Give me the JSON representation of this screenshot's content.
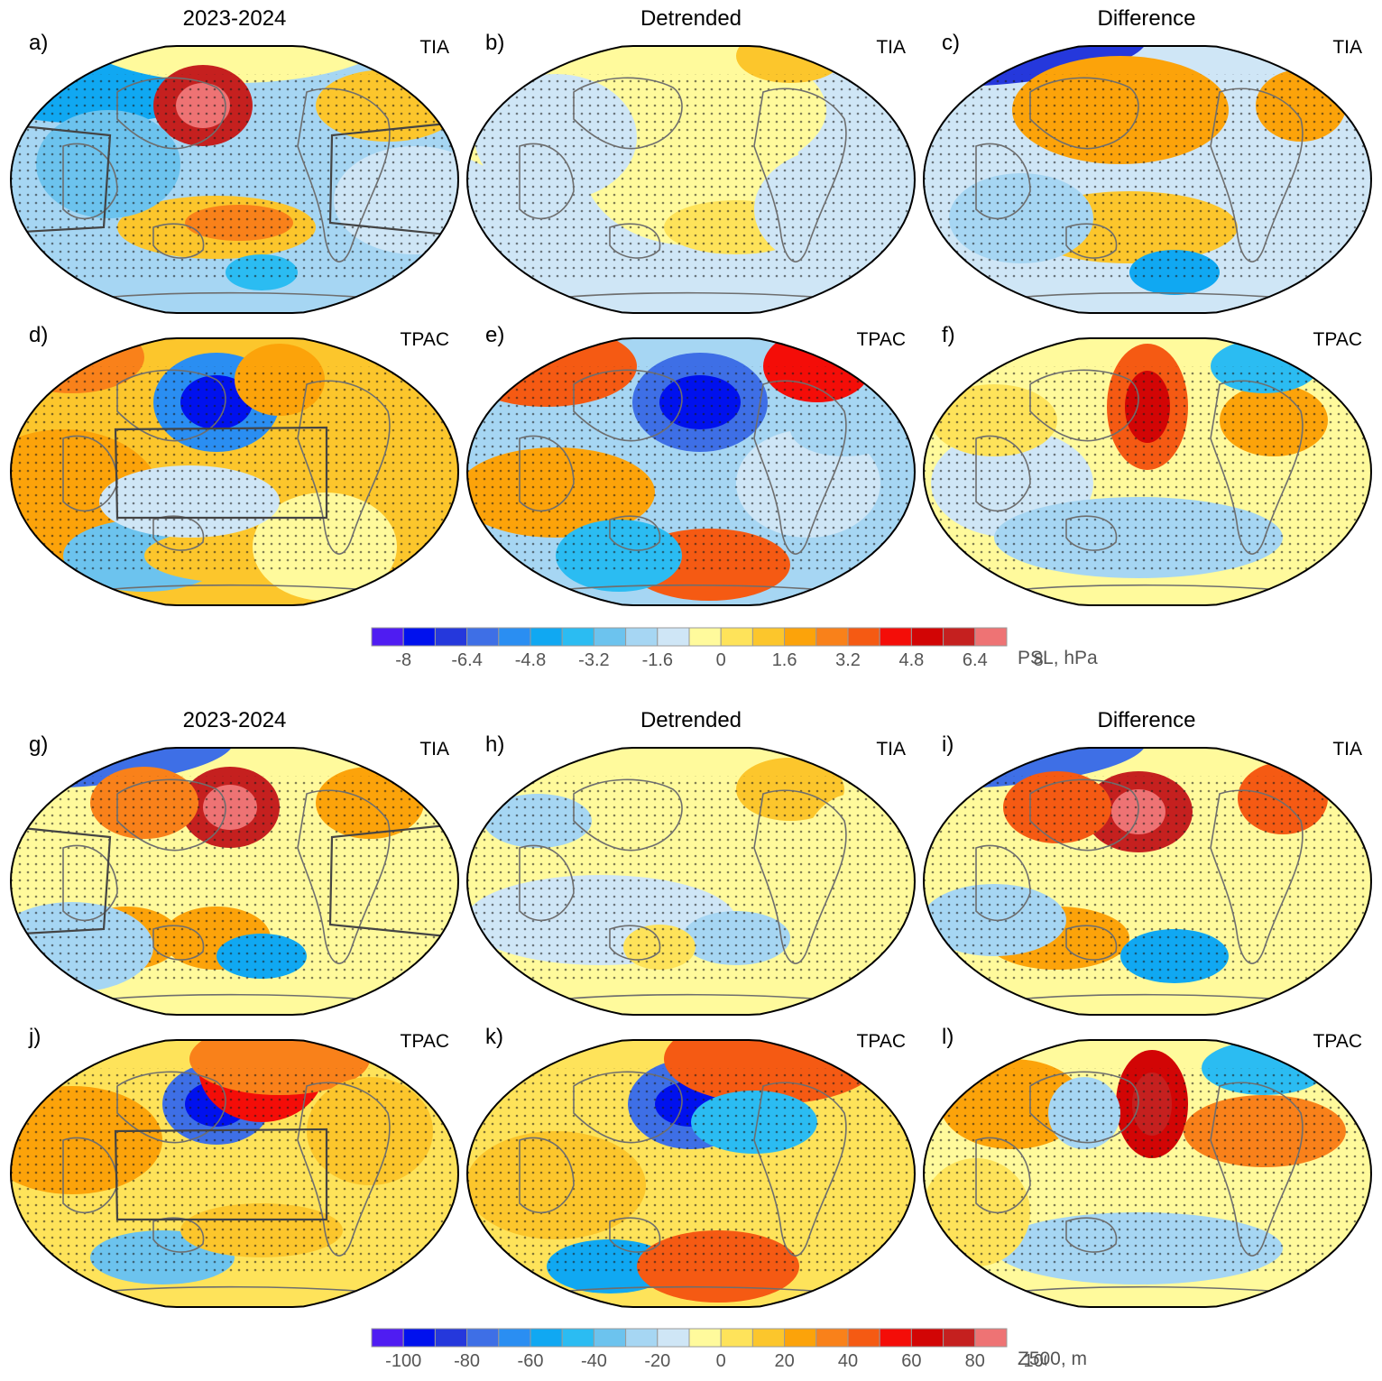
{
  "column_titles": [
    "2023-2024",
    "Detrended",
    "Difference"
  ],
  "colors": [
    "#4f1cf2",
    "#0011ee",
    "#2538dc",
    "#3e6fe6",
    "#2a8ef2",
    "#10a8f2",
    "#2bbcf2",
    "#6cc3ee",
    "#a6d6f3",
    "#cfe6f6",
    "#fffa9c",
    "#fee35a",
    "#fcc62c",
    "#fca30a",
    "#f9811a",
    "#f55a13",
    "#f40d08",
    "#d20505",
    "#c5201f",
    "#ee7374"
  ],
  "psl": {
    "units": "PSL, hPa",
    "ticks": [
      "-8",
      "-6.4",
      "-4.8",
      "-3.2",
      "-1.6",
      "0",
      "1.6",
      "3.2",
      "4.8",
      "6.4",
      "8"
    ],
    "panels": [
      {
        "label": "a)",
        "region": "TIA"
      },
      {
        "label": "b)",
        "region": "TIA"
      },
      {
        "label": "c)",
        "region": "TIA"
      },
      {
        "label": "d)",
        "region": "TPAC"
      },
      {
        "label": "e)",
        "region": "TPAC"
      },
      {
        "label": "f)",
        "region": "TPAC"
      }
    ]
  },
  "z500": {
    "units": "Z500, m",
    "ticks": [
      "-100",
      "-80",
      "-60",
      "-40",
      "-20",
      "0",
      "20",
      "40",
      "60",
      "80",
      "100"
    ],
    "panels": [
      {
        "label": "g)",
        "region": "TIA"
      },
      {
        "label": "h)",
        "region": "TIA"
      },
      {
        "label": "i)",
        "region": "TIA"
      },
      {
        "label": "j)",
        "region": "TPAC"
      },
      {
        "label": "k)",
        "region": "TPAC"
      },
      {
        "label": "l)",
        "region": "TPAC"
      }
    ]
  },
  "chart_data": {
    "type": "heatmap",
    "description_fields": "Global maps of anomaly fields; colour scale levels given by ticks",
    "color_levels": [
      -9.0,
      -8.0,
      -7.2,
      -6.4,
      -5.6,
      -4.8,
      -4.0,
      -3.2,
      -2.4,
      -1.6,
      -0.8,
      0,
      0.8,
      1.6,
      2.4,
      3.2,
      4.0,
      4.8,
      5.6,
      6.4,
      7.2,
      8.0,
      9.0
    ],
    "psl_range": [
      -8,
      8
    ],
    "z500_range": [
      -100,
      100
    ]
  }
}
